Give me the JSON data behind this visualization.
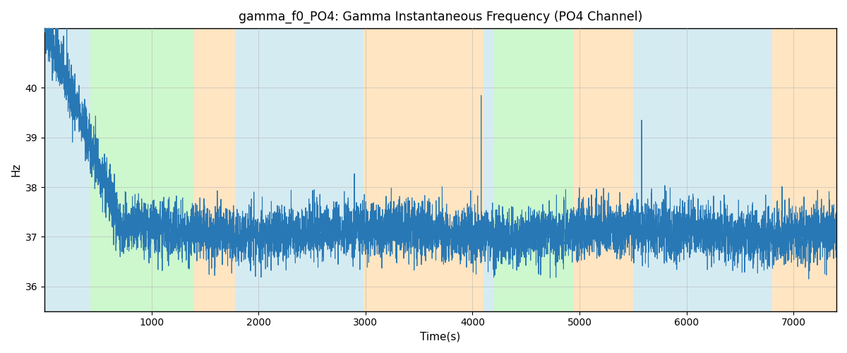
{
  "title": "gamma_f0_PO4: Gamma Instantaneous Frequency (PO4 Channel)",
  "xlabel": "Time(s)",
  "ylabel": "Hz",
  "xlim": [
    0,
    7400
  ],
  "ylim": [
    35.5,
    41.2
  ],
  "yticks": [
    36,
    37,
    38,
    39,
    40
  ],
  "xticks": [
    1000,
    2000,
    3000,
    4000,
    5000,
    6000,
    7000
  ],
  "line_color": "#2878b5",
  "line_width": 0.8,
  "grid_color": "#b0b0b0",
  "background_regions": [
    {
      "xmin": 0,
      "xmax": 430,
      "color": "#add8e6",
      "alpha": 0.5
    },
    {
      "xmin": 430,
      "xmax": 1400,
      "color": "#90ee90",
      "alpha": 0.45
    },
    {
      "xmin": 1400,
      "xmax": 1780,
      "color": "#ffd59a",
      "alpha": 0.6
    },
    {
      "xmin": 1780,
      "xmax": 2700,
      "color": "#add8e6",
      "alpha": 0.5
    },
    {
      "xmin": 2700,
      "xmax": 2980,
      "color": "#add8e6",
      "alpha": 0.5
    },
    {
      "xmin": 2980,
      "xmax": 3800,
      "color": "#ffd59a",
      "alpha": 0.6
    },
    {
      "xmin": 3800,
      "xmax": 4100,
      "color": "#ffd59a",
      "alpha": 0.6
    },
    {
      "xmin": 4100,
      "xmax": 4200,
      "color": "#add8e6",
      "alpha": 0.5
    },
    {
      "xmin": 4200,
      "xmax": 4950,
      "color": "#90ee90",
      "alpha": 0.45
    },
    {
      "xmin": 4950,
      "xmax": 5420,
      "color": "#ffd59a",
      "alpha": 0.6
    },
    {
      "xmin": 5420,
      "xmax": 5500,
      "color": "#ffd59a",
      "alpha": 0.6
    },
    {
      "xmin": 5500,
      "xmax": 6600,
      "color": "#add8e6",
      "alpha": 0.5
    },
    {
      "xmin": 6600,
      "xmax": 6800,
      "color": "#add8e6",
      "alpha": 0.5
    },
    {
      "xmin": 6800,
      "xmax": 7400,
      "color": "#ffd59a",
      "alpha": 0.6
    }
  ],
  "seed": 42,
  "n_points": 7400,
  "time_start": 0,
  "time_end": 7400
}
